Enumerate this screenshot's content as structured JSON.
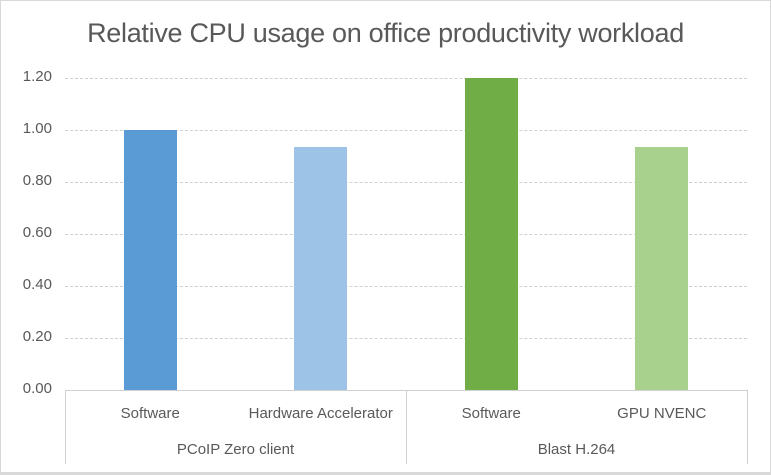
{
  "chart_data": {
    "type": "bar",
    "title": "Relative CPU usage on office productivity workload",
    "xlabel": "",
    "ylabel": "",
    "ylim": [
      0,
      1.2
    ],
    "yticks": [
      "0.00",
      "0.20",
      "0.40",
      "0.60",
      "0.80",
      "1.00",
      "1.20"
    ],
    "grid": true,
    "legend": null,
    "categories": [
      "Software",
      "Hardware Accelerator",
      "Software",
      "GPU NVENC"
    ],
    "groups": [
      {
        "name": "PCoIP Zero client",
        "categories": [
          "Software",
          "Hardware Accelerator"
        ]
      },
      {
        "name": "Blast H.264",
        "categories": [
          "Software",
          "GPU NVENC"
        ]
      }
    ],
    "values": [
      1.0,
      0.935,
      1.2,
      0.935
    ],
    "colors": [
      "#5b9bd5",
      "#9dc3e6",
      "#70ad47",
      "#a9d18e"
    ]
  },
  "labels": {
    "title": "Relative CPU usage on office productivity workload",
    "yticks": [
      "1.20",
      "1.00",
      "0.80",
      "0.60",
      "0.40",
      "0.20",
      "0.00"
    ],
    "cats": [
      "Software",
      "Hardware Accelerator",
      "Software",
      "GPU NVENC"
    ],
    "groups": [
      "PCoIP Zero client",
      "Blast H.264"
    ]
  }
}
